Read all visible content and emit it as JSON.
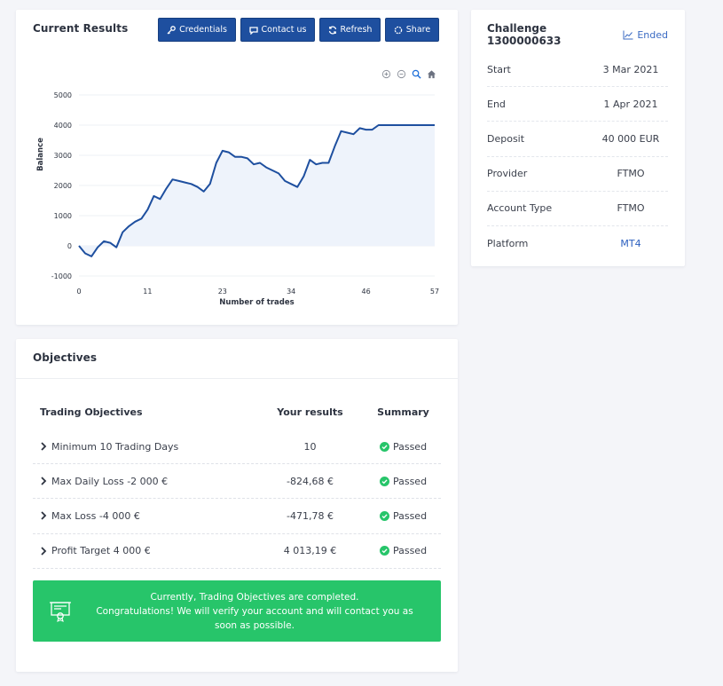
{
  "results": {
    "title": "Current Results",
    "buttons": {
      "credentials": "Credentials",
      "contact": "Contact us",
      "refresh": "Refresh",
      "share": "Share"
    },
    "chart_tools": [
      "zoom-in-icon",
      "zoom-out-icon",
      "zoom-search-icon",
      "home-icon"
    ]
  },
  "chart_data": {
    "type": "area",
    "xlabel": "Number of trades",
    "ylabel": "Balance",
    "ylim": [
      -1000,
      5000
    ],
    "xlim": [
      0,
      57
    ],
    "x_ticks": [
      0,
      11,
      23,
      34,
      46,
      57
    ],
    "y_ticks": [
      -1000,
      0,
      1000,
      2000,
      3000,
      4000,
      5000
    ],
    "y_tick_labels": [
      "-1000",
      "0",
      "1000",
      "2000",
      "3000",
      "4000",
      "5000"
    ],
    "grid": true,
    "line_color": "#1e4f9f",
    "fill_color": "#eef3fb",
    "x": [
      0,
      1,
      2,
      3,
      4,
      5,
      6,
      7,
      8,
      9,
      10,
      11,
      12,
      13,
      14,
      15,
      16,
      17,
      18,
      19,
      20,
      21,
      22,
      23,
      24,
      25,
      26,
      27,
      28,
      29,
      30,
      31,
      32,
      33,
      34,
      35,
      36,
      37,
      38,
      39,
      40,
      41,
      42,
      43,
      44,
      45,
      46,
      47,
      48,
      49,
      50,
      51,
      52,
      53,
      54,
      55,
      56,
      57
    ],
    "y": [
      0,
      -250,
      -350,
      -50,
      150,
      100,
      -50,
      450,
      650,
      800,
      900,
      1200,
      1650,
      1550,
      1900,
      2200,
      2150,
      2100,
      2050,
      1950,
      1800,
      2050,
      2750,
      3150,
      3100,
      2950,
      2950,
      2900,
      2700,
      2750,
      2600,
      2500,
      2400,
      2150,
      2050,
      1950,
      2300,
      2850,
      2700,
      2750,
      2750,
      3300,
      3800,
      3750,
      3700,
      3900,
      3850,
      3850,
      4000,
      4000,
      4000,
      4000,
      4000,
      4000,
      4000,
      4000,
      4000,
      4000
    ]
  },
  "challenge": {
    "title": "Challenge 1300000633",
    "status": "Ended",
    "rows": [
      {
        "label": "Start",
        "value": "3 Mar 2021"
      },
      {
        "label": "End",
        "value": "1 Apr 2021"
      },
      {
        "label": "Deposit",
        "value": "40 000 EUR"
      },
      {
        "label": "Provider",
        "value": "FTMO"
      },
      {
        "label": "Account Type",
        "value": "FTMO"
      },
      {
        "label": "Platform",
        "value": "MT4"
      }
    ]
  },
  "objectives": {
    "title": "Objectives",
    "headers": {
      "objective": "Trading Objectives",
      "result": "Your results",
      "summary": "Summary"
    },
    "rows": [
      {
        "objective": "Minimum 10 Trading Days",
        "result": "10",
        "summary": "Passed"
      },
      {
        "objective": "Max Daily Loss -2 000 €",
        "result": "-824,68 €",
        "summary": "Passed"
      },
      {
        "objective": "Max Loss -4 000 €",
        "result": "-471,78 €",
        "summary": "Passed"
      },
      {
        "objective": "Profit Target 4 000 €",
        "result": "4 013,19 €",
        "summary": "Passed"
      }
    ],
    "notice": {
      "line1": "Currently, Trading Objectives are completed.",
      "line2": "Congratulations! We will verify your account and will contact you as soon as possible."
    },
    "status_color": "#27c56a"
  }
}
